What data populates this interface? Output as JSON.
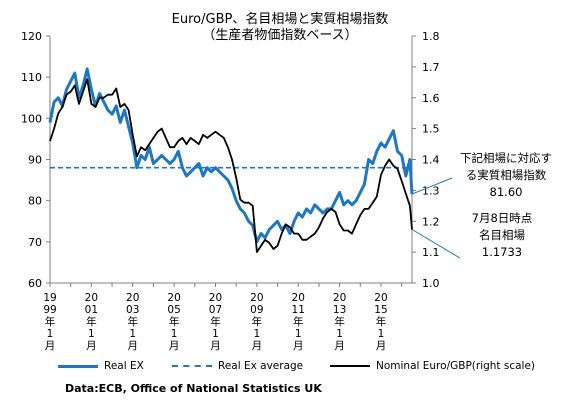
{
  "chart_data": {
    "type": "line",
    "title": "Euro/GBP、名目相場と実質相場指数",
    "subtitle": "（生産者物価指数ベース）",
    "ylim": [
      60,
      120
    ],
    "yticks": [
      "60",
      "70",
      "80",
      "90",
      "100",
      "110",
      "120"
    ],
    "y2lim": [
      1.0,
      1.8
    ],
    "y2ticks": [
      "1.0",
      "1.1",
      "1.2",
      "1.3",
      "1.4",
      "1.5",
      "1.6",
      "1.7",
      "1.8"
    ],
    "xlim": [
      1999.0,
      2016.5
    ],
    "xticks": [
      {
        "x": 1999,
        "label": "1999年1月"
      },
      {
        "x": 2001,
        "label": "2001年1月"
      },
      {
        "x": 2003,
        "label": "2003年1月"
      },
      {
        "x": 2005,
        "label": "2005年1月"
      },
      {
        "x": 2007,
        "label": "2007年1月"
      },
      {
        "x": 2009,
        "label": "2009年1月"
      },
      {
        "x": 2011,
        "label": "2011年1月"
      },
      {
        "x": 2013,
        "label": "2013年1月"
      },
      {
        "x": 2015,
        "label": "2015年1月"
      }
    ],
    "colors": {
      "real": "#1f77c0",
      "average": "#1f77c0",
      "nominal": "#000000"
    },
    "series": [
      {
        "name": "Real EX",
        "axis": "left",
        "style": "solid-thick",
        "x": [
          1999.0,
          1999.2,
          1999.4,
          1999.6,
          1999.8,
          2000.0,
          2000.2,
          2000.4,
          2000.6,
          2000.8,
          2001.0,
          2001.2,
          2001.4,
          2001.6,
          2001.8,
          2002.0,
          2002.2,
          2002.4,
          2002.6,
          2002.8,
          2003.0,
          2003.2,
          2003.4,
          2003.6,
          2003.8,
          2004.0,
          2004.2,
          2004.4,
          2004.6,
          2004.8,
          2005.0,
          2005.2,
          2005.4,
          2005.6,
          2005.8,
          2006.0,
          2006.2,
          2006.4,
          2006.6,
          2006.8,
          2007.0,
          2007.2,
          2007.4,
          2007.6,
          2007.8,
          2008.0,
          2008.2,
          2008.4,
          2008.6,
          2008.8,
          2009.0,
          2009.2,
          2009.4,
          2009.6,
          2009.8,
          2010.0,
          2010.2,
          2010.4,
          2010.6,
          2010.8,
          2011.0,
          2011.2,
          2011.4,
          2011.6,
          2011.8,
          2012.0,
          2012.2,
          2012.4,
          2012.6,
          2012.8,
          2013.0,
          2013.2,
          2013.4,
          2013.6,
          2013.8,
          2014.0,
          2014.2,
          2014.4,
          2014.6,
          2014.8,
          2015.0,
          2015.2,
          2015.4,
          2015.6,
          2015.8,
          2016.0,
          2016.2,
          2016.4,
          2016.5
        ],
        "y": [
          99,
          104,
          105,
          103,
          107,
          109,
          111,
          105,
          108,
          112,
          107,
          103,
          106,
          104,
          102,
          101,
          103,
          99,
          102,
          98,
          94,
          88,
          91,
          90,
          93,
          89,
          90,
          91,
          90,
          89,
          90,
          92,
          88,
          86,
          87,
          88,
          89,
          86,
          88,
          87,
          88,
          87,
          86,
          85,
          83,
          80,
          78,
          77,
          75,
          74,
          70,
          72,
          71,
          73,
          74,
          75,
          73,
          74,
          72,
          75,
          77,
          76,
          78,
          77,
          79,
          78,
          77,
          78,
          78,
          80,
          82,
          79,
          80,
          79,
          80,
          82,
          84,
          90,
          89,
          92,
          94,
          93,
          95,
          97,
          92,
          91,
          86,
          90,
          81.6
        ]
      },
      {
        "name": "Real Ex average",
        "axis": "left",
        "style": "dashed",
        "x": [
          1999.0,
          2016.5
        ],
        "y": [
          88,
          88
        ]
      },
      {
        "name": "Nominal Euro/GBP(right scale)",
        "axis": "right",
        "style": "solid-thin",
        "x": [
          1999.0,
          1999.2,
          1999.4,
          1999.6,
          1999.8,
          2000.0,
          2000.2,
          2000.4,
          2000.6,
          2000.8,
          2001.0,
          2001.2,
          2001.4,
          2001.6,
          2001.8,
          2002.0,
          2002.2,
          2002.4,
          2002.6,
          2002.8,
          2003.0,
          2003.2,
          2003.4,
          2003.6,
          2003.8,
          2004.0,
          2004.2,
          2004.4,
          2004.6,
          2004.8,
          2005.0,
          2005.2,
          2005.4,
          2005.6,
          2005.8,
          2006.0,
          2006.2,
          2006.4,
          2006.6,
          2006.8,
          2007.0,
          2007.2,
          2007.4,
          2007.6,
          2007.8,
          2008.0,
          2008.2,
          2008.4,
          2008.6,
          2008.8,
          2009.0,
          2009.2,
          2009.4,
          2009.6,
          2009.8,
          2010.0,
          2010.2,
          2010.4,
          2010.6,
          2010.8,
          2011.0,
          2011.2,
          2011.4,
          2011.6,
          2011.8,
          2012.0,
          2012.2,
          2012.4,
          2012.6,
          2012.8,
          2013.0,
          2013.2,
          2013.4,
          2013.6,
          2013.8,
          2014.0,
          2014.2,
          2014.4,
          2014.6,
          2014.8,
          2015.0,
          2015.2,
          2015.4,
          2015.6,
          2015.8,
          2016.0,
          2016.2,
          2016.4,
          2016.5
        ],
        "y": [
          1.46,
          1.5,
          1.55,
          1.57,
          1.61,
          1.62,
          1.64,
          1.58,
          1.62,
          1.66,
          1.58,
          1.57,
          1.6,
          1.6,
          1.61,
          1.61,
          1.63,
          1.57,
          1.58,
          1.56,
          1.48,
          1.41,
          1.44,
          1.43,
          1.45,
          1.47,
          1.49,
          1.5,
          1.47,
          1.44,
          1.44,
          1.46,
          1.47,
          1.45,
          1.47,
          1.46,
          1.45,
          1.48,
          1.47,
          1.48,
          1.49,
          1.48,
          1.47,
          1.44,
          1.4,
          1.34,
          1.27,
          1.26,
          1.26,
          1.25,
          1.1,
          1.12,
          1.14,
          1.13,
          1.11,
          1.12,
          1.16,
          1.19,
          1.18,
          1.16,
          1.16,
          1.14,
          1.14,
          1.15,
          1.16,
          1.18,
          1.21,
          1.23,
          1.24,
          1.23,
          1.19,
          1.17,
          1.17,
          1.16,
          1.19,
          1.22,
          1.24,
          1.24,
          1.26,
          1.28,
          1.35,
          1.38,
          1.4,
          1.38,
          1.37,
          1.33,
          1.29,
          1.25,
          1.1733
        ]
      }
    ],
    "annotations": [
      {
        "lines": [
          "下記相場に対応す",
          "る実質相場指数",
          "81.60"
        ],
        "points_to": {
          "x": 2016.5,
          "y": 81.6,
          "axis": "left"
        }
      },
      {
        "lines": [
          "7月8日時点",
          "名目相場",
          "1.1733"
        ],
        "points_to": {
          "x": 2016.5,
          "y": 1.1733,
          "axis": "right"
        }
      }
    ],
    "legend": {
      "placement": "bottom"
    },
    "grid": false,
    "source": "Data:ECB, Office of National Statistics UK"
  }
}
